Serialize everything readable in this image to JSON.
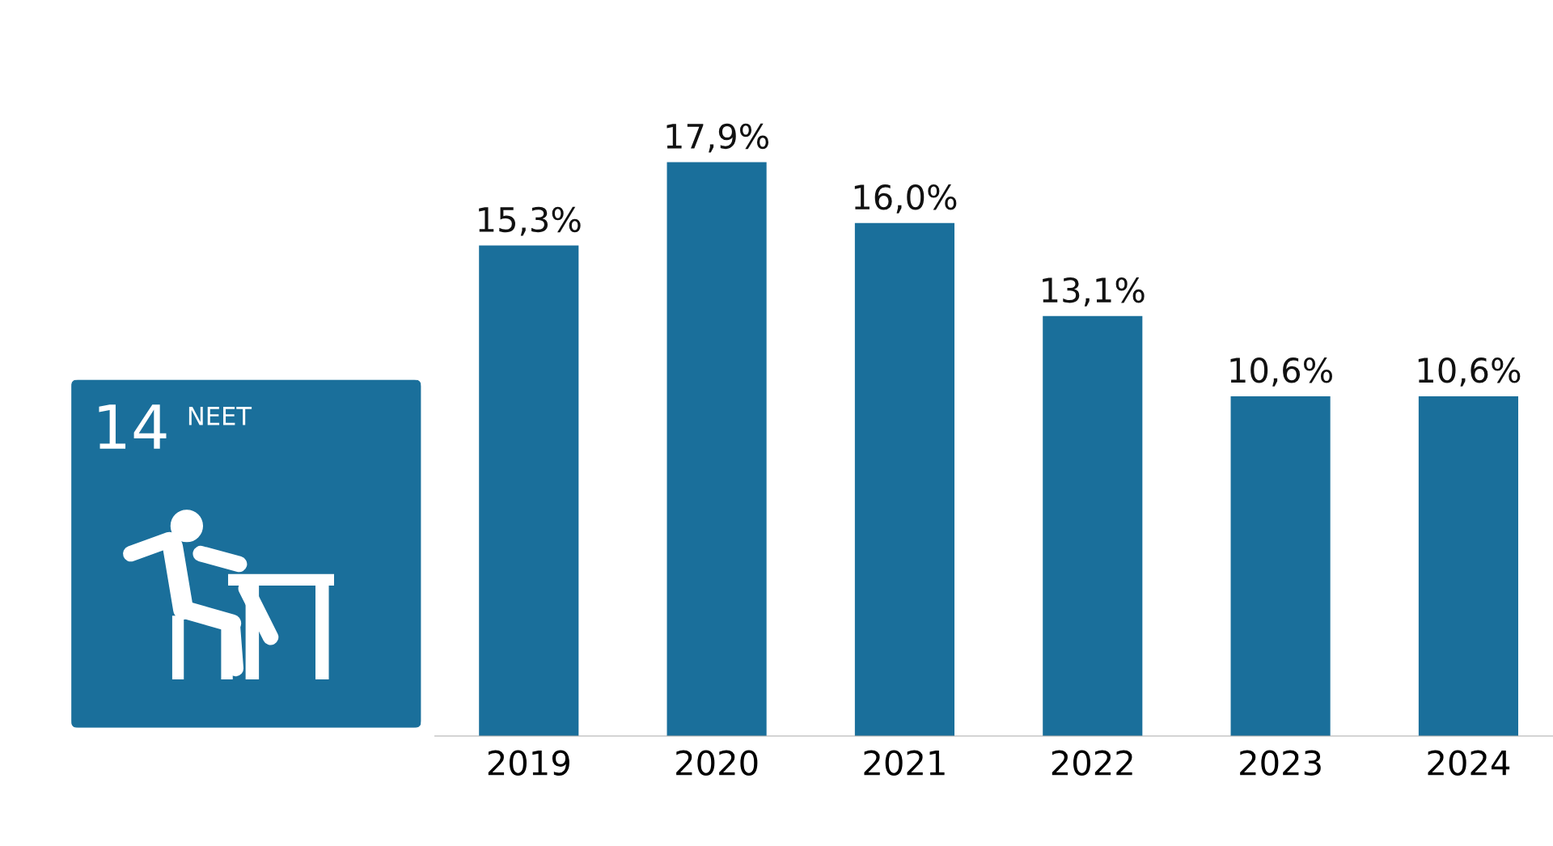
{
  "chart_data": {
    "type": "bar",
    "categories": [
      "2019",
      "2020",
      "2021",
      "2022",
      "2023",
      "2024"
    ],
    "values": [
      15.3,
      17.9,
      16.0,
      13.1,
      10.6,
      10.6
    ],
    "value_labels": [
      "15,3%",
      "17,9%",
      "16,0%",
      "13,1%",
      "10,6%",
      "10,6%"
    ],
    "color": "#1a6f9b",
    "grid": false,
    "legend": false,
    "annotations": [
      "14",
      "NEET"
    ]
  }
}
